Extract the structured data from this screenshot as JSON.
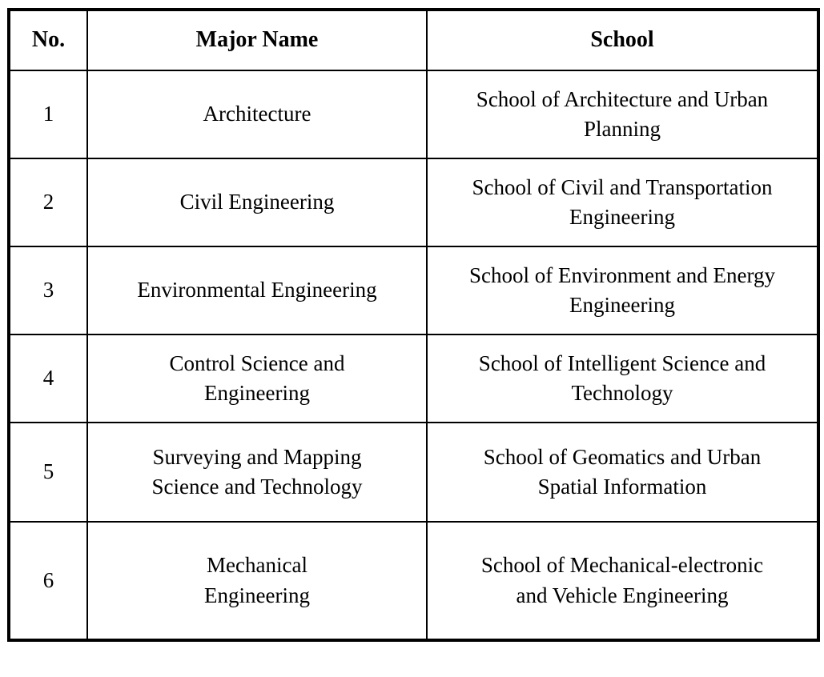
{
  "table": {
    "headers": {
      "no": "No.",
      "major": "Major Name",
      "school": "School"
    },
    "rows": [
      {
        "no": "1",
        "major": "Architecture",
        "school": "School of Architecture and Urban\nPlanning"
      },
      {
        "no": "2",
        "major": "Civil Engineering",
        "school": "School of Civil and Transportation\nEngineering"
      },
      {
        "no": "3",
        "major": "Environmental Engineering",
        "school": "School of Environment and Energy\nEngineering"
      },
      {
        "no": "4",
        "major": "Control Science and\nEngineering",
        "school": "School of Intelligent Science and\nTechnology"
      },
      {
        "no": "5",
        "major": "Surveying and Mapping\nScience and Technology",
        "school": "School of Geomatics and Urban\nSpatial Information"
      },
      {
        "no": "6",
        "major": "Mechanical\nEngineering",
        "school": "School of Mechanical-electronic\nand Vehicle Engineering"
      }
    ],
    "border_color": "#000000",
    "background_color": "#ffffff"
  }
}
